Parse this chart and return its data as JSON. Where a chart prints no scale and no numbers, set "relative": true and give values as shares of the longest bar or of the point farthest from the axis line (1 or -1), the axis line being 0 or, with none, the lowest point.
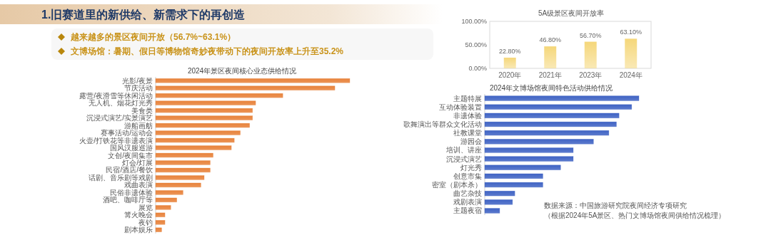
{
  "chart_data": [
    {
      "type": "bar",
      "title": "5A级景区夜间开放率",
      "categories": [
        "2020年",
        "2021年",
        "2023年",
        "2024年"
      ],
      "values": [
        22.8,
        46.8,
        56.7,
        63.1
      ],
      "value_labels": [
        "22.80%",
        "46.80%",
        "56.70%",
        "63.10%"
      ],
      "color": "#f5d77a",
      "ylim": [
        0,
        100
      ],
      "yticks": [
        {
          "value": 0,
          "label": "0.00%"
        },
        {
          "value": 50,
          "label": "50.00%"
        },
        {
          "value": 100,
          "label": "100.00%"
        }
      ],
      "annotations": [
        "1.旧赛道里的新供给、新需求下的再创造",
        "越来越多的景区夜间开放（56.7%~63.1%）",
        "文博场馆：暑期、假日等博物馆奇妙夜带动下的夜间开放率上升至35.2%"
      ]
    },
    {
      "type": "bar",
      "orientation": "horizontal",
      "relative": true,
      "title": "2024年景区夜间核心业态供给情况",
      "color": "#e8823a",
      "categories": [
        "光影/夜景",
        "节庆活动",
        "露营/夜滑雪等休闲活动",
        "无人机、烟花灯光秀",
        "美食类",
        "沉浸式演艺/实景演艺",
        "游船画舫",
        "赛事活动/运动会",
        "火壶/打铁花等非遗表演",
        "国风汉服巡游",
        "文创/夜间集市",
        "灯会/灯展",
        "民宿/酒店/餐饮",
        "话剧、音乐剧等戏剧",
        "戏曲表演",
        "民俗非遗体验",
        "酒吧、咖啡厅等",
        "展览",
        "篝火晚会",
        "夜钓",
        "剧本娱乐"
      ],
      "values": [
        1,
        0.923,
        0.655,
        0.515,
        0.499,
        0.499,
        0.484,
        0.436,
        0.405,
        0.39,
        0.296,
        0.281,
        0.281,
        0.25,
        0.233,
        0.141,
        0.109,
        0.078,
        0.048,
        0.048,
        0.031
      ]
    },
    {
      "type": "bar",
      "orientation": "horizontal",
      "relative": true,
      "title": "2024年文博场馆夜间特色活动供给情况",
      "color": "#3f63c4",
      "categories": [
        "主题特展",
        "互动体验装置",
        "非遗体验",
        "歌舞演出等群众文化活动",
        "社教课堂",
        "游园会",
        "培训、讲座",
        "沉浸式演艺",
        "灯光秀",
        "创意市集",
        "密室（剧本杀）",
        "曲艺杂技",
        "戏剧表演",
        "主题夜宿"
      ],
      "values": [
        1,
        0.953,
        0.871,
        0.854,
        0.805,
        0.705,
        0.574,
        0.574,
        0.492,
        0.377,
        0.377,
        0.195,
        0.18,
        0.097
      ],
      "annotations": [
        "数据来源：中国旅游研究院夜间经济专项研究",
        "（根据2024年5A景区、热门文博场馆夜间供给情况梳理）"
      ]
    }
  ]
}
